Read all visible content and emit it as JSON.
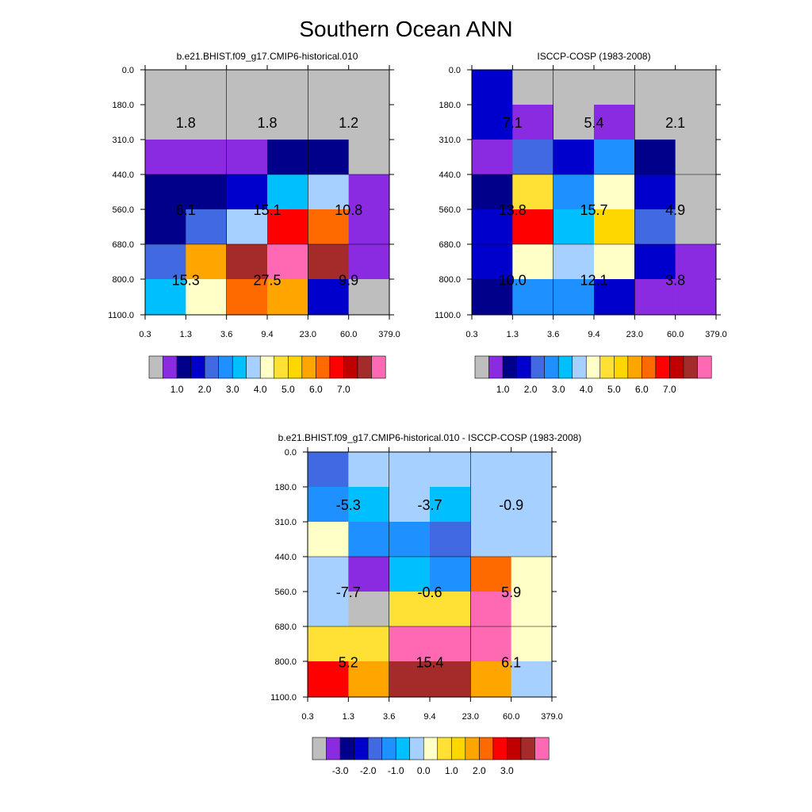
{
  "title": "Southern Ocean ANN",
  "palettes": {
    "abs": [
      "#bebebe",
      "#8a2be2",
      "#00008b",
      "#0000cd",
      "#4169e1",
      "#1e90ff",
      "#00bfff",
      "#a6d0ff",
      "#ffffc8",
      "#ffe135",
      "#ffd700",
      "#ffa500",
      "#ff6a00",
      "#ff0000",
      "#c00000",
      "#a52a2a",
      "#ff69b4"
    ],
    "diff": [
      "#bebebe",
      "#8a2be2",
      "#00008b",
      "#0000cd",
      "#4169e1",
      "#1e90ff",
      "#00bfff",
      "#a6d0ff",
      "#ffffc8",
      "#ffe135",
      "#ffd700",
      "#ffa500",
      "#ff6a00",
      "#ff0000",
      "#c00000",
      "#a52a2a",
      "#ff69b4"
    ]
  },
  "chart_data": [
    {
      "type": "heatmap",
      "title": "b.e21.BHIST.f09_g17.CMIP6-historical.010",
      "x_ticks": [
        "0.3",
        "1.3",
        "3.6",
        "9.4",
        "23.0",
        "60.0",
        "379.0"
      ],
      "y_ticks": [
        "0.0",
        "180.0",
        "310.0",
        "440.0",
        "560.0",
        "680.0",
        "800.0",
        "1100.0"
      ],
      "cell_colors": [
        [
          0,
          0,
          0,
          0,
          0,
          0
        ],
        [
          0,
          0,
          0,
          0,
          0,
          0
        ],
        [
          1,
          1,
          1,
          2,
          2,
          0
        ],
        [
          2,
          2,
          3,
          6,
          7,
          1
        ],
        [
          2,
          4,
          7,
          13,
          12,
          1
        ],
        [
          4,
          11,
          15,
          16,
          15,
          1
        ],
        [
          6,
          8,
          12,
          11,
          3,
          0
        ]
      ],
      "block_values": [
        [
          "1.8",
          "1.8",
          "1.2"
        ],
        [
          "6.1",
          "15.1",
          "10.8"
        ],
        [
          "15.3",
          "27.5",
          "9.9"
        ]
      ],
      "colorbar": {
        "palette": "abs",
        "labels": [
          "1.0",
          "2.0",
          "3.0",
          "4.0",
          "5.0",
          "6.0",
          "7.0"
        ]
      }
    },
    {
      "type": "heatmap",
      "title": "ISCCP-COSP (1983-2008)",
      "x_ticks": [
        "0.3",
        "1.3",
        "3.6",
        "9.4",
        "23.0",
        "60.0",
        "379.0"
      ],
      "y_ticks": [
        "0.0",
        "180.0",
        "310.0",
        "440.0",
        "560.0",
        "680.0",
        "800.0",
        "1100.0"
      ],
      "cell_colors": [
        [
          3,
          0,
          0,
          0,
          0,
          0
        ],
        [
          3,
          1,
          0,
          1,
          0,
          0
        ],
        [
          1,
          4,
          3,
          5,
          2,
          0
        ],
        [
          2,
          9,
          5,
          8,
          3,
          0
        ],
        [
          3,
          13,
          6,
          10,
          4,
          0
        ],
        [
          3,
          8,
          7,
          8,
          3,
          1
        ],
        [
          2,
          5,
          5,
          3,
          1,
          1
        ]
      ],
      "block_values": [
        [
          "7.1",
          "5.4",
          "2.1"
        ],
        [
          "13.8",
          "15.7",
          "4.9"
        ],
        [
          "10.0",
          "12.1",
          "3.8"
        ]
      ],
      "colorbar": {
        "palette": "abs",
        "labels": [
          "1.0",
          "2.0",
          "3.0",
          "4.0",
          "5.0",
          "6.0",
          "7.0"
        ]
      }
    },
    {
      "type": "heatmap",
      "title": "b.e21.BHIST.f09_g17.CMIP6-historical.010 - ISCCP-COSP (1983-2008)",
      "x_ticks": [
        "0.3",
        "1.3",
        "3.6",
        "9.4",
        "23.0",
        "60.0",
        "379.0"
      ],
      "y_ticks": [
        "0.0",
        "180.0",
        "310.0",
        "440.0",
        "560.0",
        "680.0",
        "800.0",
        "1100.0"
      ],
      "cell_colors": [
        [
          4,
          7,
          7,
          7,
          7,
          7
        ],
        [
          5,
          6,
          7,
          6,
          7,
          7
        ],
        [
          8,
          5,
          5,
          4,
          7,
          7
        ],
        [
          7,
          1,
          6,
          5,
          12,
          8
        ],
        [
          7,
          0,
          9,
          9,
          16,
          8
        ],
        [
          9,
          9,
          16,
          16,
          16,
          8
        ],
        [
          13,
          11,
          15,
          15,
          11,
          7
        ]
      ],
      "block_values": [
        [
          "-5.3",
          "-3.7",
          "-0.9"
        ],
        [
          "-7.7",
          "-0.6",
          "5.9"
        ],
        [
          "5.2",
          "15.4",
          "6.1"
        ]
      ],
      "colorbar": {
        "palette": "diff",
        "labels": [
          "-3.0",
          "-2.0",
          "-1.0",
          "0.0",
          "1.0",
          "2.0",
          "3.0"
        ]
      }
    }
  ]
}
